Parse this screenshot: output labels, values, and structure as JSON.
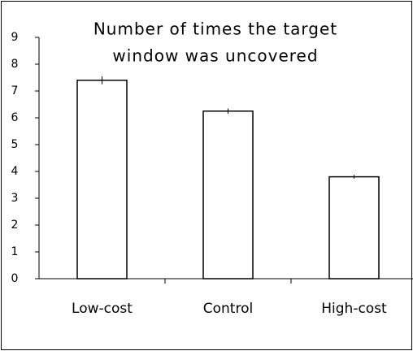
{
  "chart_data": {
    "type": "bar",
    "title": [
      "Number of times the target",
      "window was uncovered"
    ],
    "categories": [
      "Low-cost",
      "Control",
      "High-cost"
    ],
    "values": [
      7.4,
      6.25,
      3.8
    ],
    "errors": [
      0.15,
      0.1,
      0.07
    ],
    "color": "#ffffff",
    "ylim": [
      0,
      9
    ],
    "yticks": [
      0,
      1,
      2,
      3,
      4,
      5,
      6,
      7,
      8,
      9
    ],
    "grid": false
  }
}
